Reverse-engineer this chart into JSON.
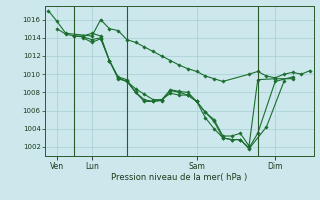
{
  "background_color": "#cce8ec",
  "grid_color": "#a8cdd4",
  "line_color": "#1a6e2e",
  "vline_color": "#2a5a2a",
  "title": "Pression niveau de la mer( hPa )",
  "ylim": [
    1001.0,
    1017.5
  ],
  "yticks": [
    1002,
    1004,
    1006,
    1008,
    1010,
    1012,
    1014,
    1016
  ],
  "xlim": [
    -0.2,
    15.2
  ],
  "xtick_labels": [
    "Ven",
    "Lun",
    "Sam",
    "Dim"
  ],
  "xtick_positions": [
    0.5,
    2.5,
    8.5,
    13.0
  ],
  "vline_positions": [
    1.5,
    4.5,
    12.0
  ],
  "series": [
    {
      "x": [
        0.0,
        0.5,
        1.0,
        2.5,
        3.0,
        3.5,
        4.0,
        4.5,
        5.0,
        5.5,
        6.0,
        6.5,
        7.0,
        7.5,
        8.0,
        8.5,
        9.0,
        9.5,
        10.0,
        11.5,
        12.0,
        12.5,
        13.0,
        13.5,
        14.0,
        14.5,
        15.0
      ],
      "y": [
        1017.0,
        1015.8,
        1014.5,
        1014.2,
        1016.0,
        1015.0,
        1014.8,
        1013.8,
        1013.5,
        1013.0,
        1012.5,
        1012.0,
        1011.5,
        1011.0,
        1010.6,
        1010.3,
        1009.8,
        1009.5,
        1009.2,
        1010.0,
        1010.3,
        1009.8,
        1009.6,
        1010.0,
        1010.2,
        1010.0,
        1010.4
      ]
    },
    {
      "x": [
        0.5,
        1.0,
        1.5,
        2.0,
        2.5,
        3.0,
        3.5,
        4.0,
        4.5,
        5.0,
        5.5,
        6.0,
        6.5,
        7.0,
        7.5,
        8.0,
        8.5,
        9.0,
        9.5,
        10.0,
        10.5,
        11.0,
        11.5,
        12.0,
        13.0,
        14.0
      ],
      "y": [
        1015.0,
        1014.4,
        1014.2,
        1014.2,
        1014.5,
        1014.2,
        1011.5,
        1009.5,
        1009.2,
        1008.4,
        1007.8,
        1007.2,
        1007.2,
        1008.3,
        1008.1,
        1008.0,
        1007.0,
        1005.8,
        1005.0,
        1003.2,
        1003.2,
        1003.5,
        1002.1,
        1009.4,
        1009.5,
        1009.5
      ]
    },
    {
      "x": [
        1.5,
        2.0,
        2.5,
        3.0,
        3.5,
        4.0,
        4.5,
        5.0,
        5.5,
        6.0,
        6.5,
        7.0,
        7.5,
        8.0,
        8.5,
        9.0,
        9.5,
        10.0,
        10.5,
        11.0,
        11.5,
        12.5,
        13.5
      ],
      "y": [
        1014.2,
        1014.1,
        1013.8,
        1014.0,
        1011.5,
        1009.7,
        1009.4,
        1008.0,
        1007.2,
        1007.0,
        1007.1,
        1008.2,
        1008.0,
        1007.7,
        1007.0,
        1005.8,
        1004.8,
        1003.0,
        1002.8,
        1002.8,
        1001.8,
        1004.2,
        1009.2
      ]
    },
    {
      "x": [
        2.0,
        2.5,
        3.0,
        3.5,
        4.0,
        4.5,
        5.0,
        5.5,
        6.0,
        6.5,
        7.0,
        7.5,
        8.0,
        8.5,
        9.0,
        9.5,
        10.0,
        10.5,
        11.0,
        11.5,
        12.0,
        13.0,
        14.0
      ],
      "y": [
        1014.0,
        1013.5,
        1013.9,
        1011.5,
        1009.6,
        1009.2,
        1008.0,
        1007.0,
        1007.0,
        1007.2,
        1007.9,
        1007.7,
        1007.7,
        1007.0,
        1005.2,
        1004.0,
        1003.0,
        1002.8,
        1002.8,
        1001.9,
        1003.5,
        1009.2,
        1009.7
      ]
    }
  ]
}
